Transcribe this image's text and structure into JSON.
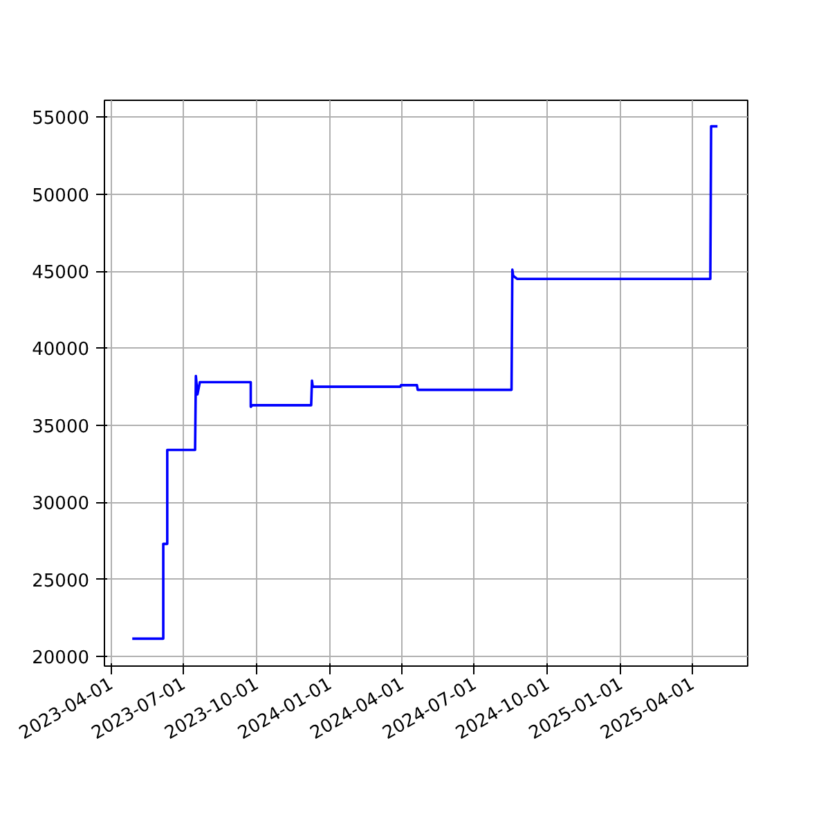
{
  "chart_data": {
    "type": "line",
    "x": [
      "2023-04-28",
      "2023-06-06",
      "2023-06-06",
      "2023-06-11",
      "2023-06-11",
      "2023-07-16",
      "2023-07-17",
      "2023-07-19",
      "2023-07-22",
      "2023-09-24",
      "2023-09-24",
      "2023-09-26",
      "2023-12-09",
      "2023-12-10",
      "2023-12-11",
      "2024-03-30",
      "2024-03-31",
      "2024-04-20",
      "2024-04-21",
      "2024-08-17",
      "2024-08-18",
      "2024-08-19",
      "2024-08-24",
      "2025-04-24",
      "2025-04-25",
      "2025-05-03"
    ],
    "series": [
      {
        "color": "#0000ff",
        "values": [
          21150,
          21150,
          27300,
          27300,
          33400,
          33400,
          38200,
          37000,
          37800,
          37800,
          36200,
          36300,
          36300,
          37900,
          37500,
          37500,
          37600,
          37600,
          37300,
          37300,
          45100,
          44700,
          44500,
          44500,
          54400,
          54400
        ]
      }
    ],
    "xlim": [
      "2023-03-24",
      "2025-06-10"
    ],
    "xticks": [
      "2023-04-01",
      "2023-07-01",
      "2023-10-01",
      "2024-01-01",
      "2024-04-01",
      "2024-07-01",
      "2024-10-01",
      "2025-01-01",
      "2025-04-01"
    ],
    "ylim": [
      19370,
      56090
    ],
    "yticks": [
      20000,
      25000,
      30000,
      35000,
      40000,
      45000,
      50000,
      55000
    ],
    "grid": true,
    "line_style": "solid",
    "marker": "none"
  }
}
